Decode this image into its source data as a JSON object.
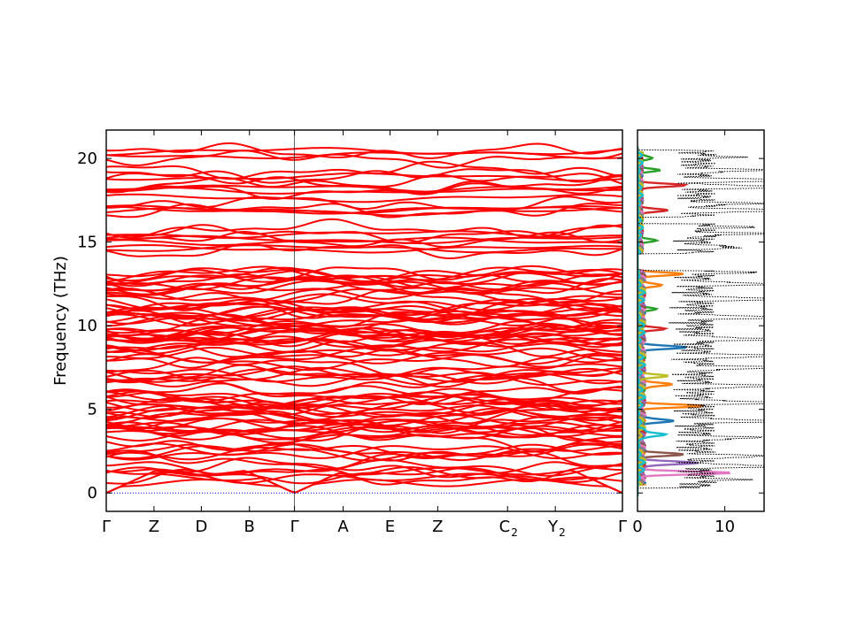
{
  "chart_data": [
    {
      "type": "line",
      "subtype": "phonon-band-structure",
      "ylabel": "Frequency (THz)",
      "xlabel": "",
      "title": "",
      "ylim": [
        -1.1,
        21.7
      ],
      "yticks": [
        0,
        5,
        10,
        15,
        20
      ],
      "xticks": [
        {
          "label": "Γ",
          "sub": "",
          "pos": 0.0
        },
        {
          "label": "Z",
          "sub": "",
          "pos": 0.0925
        },
        {
          "label": "D",
          "sub": "",
          "pos": 0.1842
        },
        {
          "label": "B",
          "sub": "",
          "pos": 0.2774
        },
        {
          "label": "Γ",
          "sub": "",
          "pos": 0.3647
        },
        {
          "label": "A",
          "sub": "",
          "pos": 0.4589
        },
        {
          "label": "E",
          "sub": "",
          "pos": 0.5497
        },
        {
          "label": "Z",
          "sub": "",
          "pos": 0.6421
        },
        {
          "label": "C",
          "sub": "2",
          "pos": 0.7774
        },
        {
          "label": "Y",
          "sub": "2",
          "pos": 0.8699
        },
        {
          "label": "Γ",
          "sub": "",
          "pos": 1.0
        }
      ],
      "series_color": "#ff0000",
      "zero_line_color": "#0000ff",
      "band_groups": [
        {
          "range": [
            0,
            13.3
          ],
          "description": "dense acoustic and low/mid optical bands"
        },
        {
          "range": [
            14.4,
            16.0
          ],
          "description": "isolated band group"
        },
        {
          "range": [
            16.6,
            20.5
          ],
          "description": "upper optical bands"
        }
      ],
      "band_frequencies_gamma": [
        0,
        0,
        0,
        1.0,
        1.5,
        2.0,
        2.5,
        3.1,
        3.6,
        4.2,
        4.8,
        5.3,
        5.9,
        6.4,
        7.0,
        7.6,
        8.1,
        8.7,
        9.3,
        9.8,
        10.4,
        10.9,
        11.5,
        12.0,
        12.5,
        13.0,
        14.5,
        15.1,
        15.5,
        15.8,
        16.9,
        17.3,
        18.1,
        18.4,
        18.7,
        19.0,
        19.3,
        20.0,
        20.4
      ]
    },
    {
      "type": "line",
      "subtype": "phonon-dos",
      "xlim": [
        0,
        14.5
      ],
      "xticks": [
        0,
        10
      ],
      "ylim": [
        -1.1,
        21.7
      ],
      "total_dos_style": "black dotted",
      "projected_colors": [
        "#1f77b4",
        "#ff7f0e",
        "#2ca02c",
        "#d62728",
        "#9467bd",
        "#8c564b",
        "#e377c2",
        "#7f7f7f",
        "#bcbd22",
        "#17becf"
      ],
      "total_dos_peaks": [
        {
          "freq": 0.8,
          "value": 4.5
        },
        {
          "freq": 1.6,
          "value": 11.5
        },
        {
          "freq": 2.2,
          "value": 9.0
        },
        {
          "freq": 3.3,
          "value": 7.5
        },
        {
          "freq": 4.3,
          "value": 14.0
        },
        {
          "freq": 5.4,
          "value": 13.0
        },
        {
          "freq": 6.4,
          "value": 12.0
        },
        {
          "freq": 7.5,
          "value": 13.5
        },
        {
          "freq": 8.2,
          "value": 12.5
        },
        {
          "freq": 9.2,
          "value": 14.0
        },
        {
          "freq": 10.5,
          "value": 13.0
        },
        {
          "freq": 11.6,
          "value": 12.0
        },
        {
          "freq": 12.5,
          "value": 10.0
        },
        {
          "freq": 13.2,
          "value": 6.0
        },
        {
          "freq": 14.7,
          "value": 5.0
        },
        {
          "freq": 15.5,
          "value": 8.0
        },
        {
          "freq": 15.9,
          "value": 5.5
        },
        {
          "freq": 16.9,
          "value": 12.0
        },
        {
          "freq": 17.3,
          "value": 7.0
        },
        {
          "freq": 18.3,
          "value": 14.5
        },
        {
          "freq": 18.7,
          "value": 13.0
        },
        {
          "freq": 19.3,
          "value": 9.0
        },
        {
          "freq": 20.1,
          "value": 4.0
        }
      ],
      "projected_dos_peaks": [
        {
          "freq": 1.2,
          "value": 10.5,
          "color": "#e377c2"
        },
        {
          "freq": 1.8,
          "value": 7.0,
          "color": "#9467bd"
        },
        {
          "freq": 2.3,
          "value": 5.0,
          "color": "#8c564b"
        },
        {
          "freq": 3.5,
          "value": 3.2,
          "color": "#17becf"
        },
        {
          "freq": 4.3,
          "value": 4.0,
          "color": "#1f77b4"
        },
        {
          "freq": 5.2,
          "value": 7.5,
          "color": "#ff7f0e"
        },
        {
          "freq": 6.5,
          "value": 4.0,
          "color": "#ff7f0e"
        },
        {
          "freq": 7.0,
          "value": 3.5,
          "color": "#bcbd22"
        },
        {
          "freq": 8.7,
          "value": 5.2,
          "color": "#1f77b4"
        },
        {
          "freq": 9.8,
          "value": 2.5,
          "color": "#d62728"
        },
        {
          "freq": 11.0,
          "value": 2.0,
          "color": "#2ca02c"
        },
        {
          "freq": 12.4,
          "value": 2.5,
          "color": "#ff7f0e"
        },
        {
          "freq": 13.1,
          "value": 5.0,
          "color": "#ff7f0e"
        },
        {
          "freq": 15.1,
          "value": 2.2,
          "color": "#2ca02c"
        },
        {
          "freq": 16.9,
          "value": 3.5,
          "color": "#d62728"
        },
        {
          "freq": 18.4,
          "value": 5.5,
          "color": "#d62728"
        },
        {
          "freq": 19.3,
          "value": 2.5,
          "color": "#2ca02c"
        },
        {
          "freq": 20.0,
          "value": 1.5,
          "color": "#2ca02c"
        }
      ]
    }
  ]
}
